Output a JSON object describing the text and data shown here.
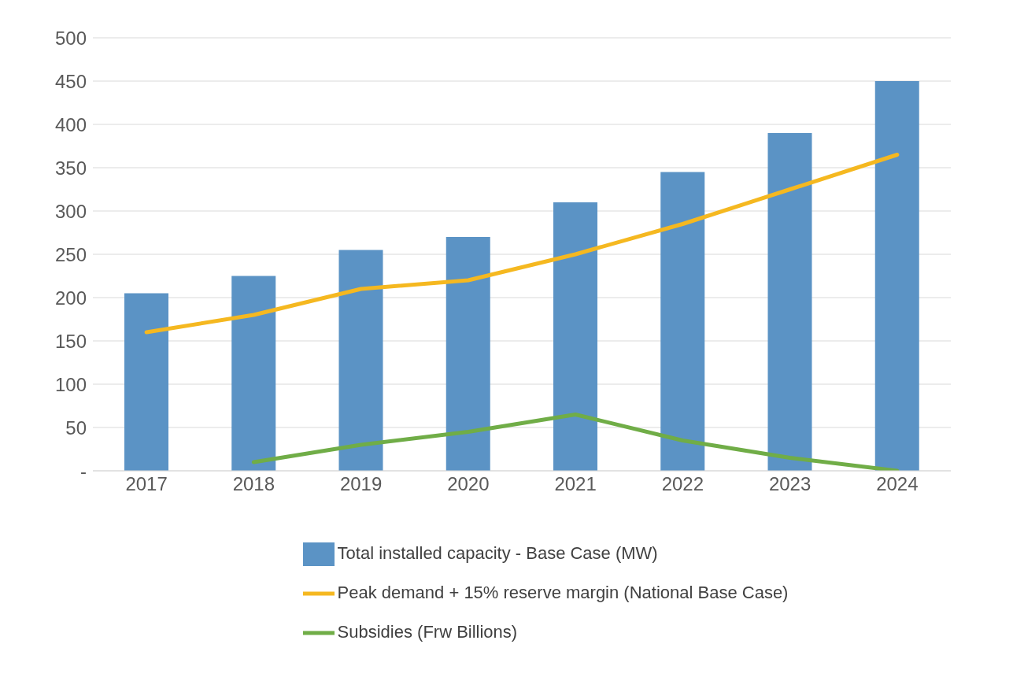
{
  "chart_data": {
    "type": "bar",
    "categories": [
      "2017",
      "2018",
      "2019",
      "2020",
      "2021",
      "2022",
      "2023",
      "2024"
    ],
    "series": [
      {
        "name": "Total installed capacity - Base Case (MW)",
        "color": "#5b93c5",
        "values": [
          205,
          225,
          255,
          270,
          310,
          345,
          390,
          450
        ]
      },
      {
        "name": "Peak demand + 15% reserve margin (National Base Case)",
        "type": "line",
        "color": "#f5b820",
        "values": [
          160,
          180,
          210,
          220,
          250,
          285,
          325,
          365
        ]
      },
      {
        "name": "Subsidies (Frw Billions)",
        "type": "line",
        "color": "#70ad47",
        "values": [
          null,
          10,
          30,
          45,
          65,
          35,
          15,
          0
        ]
      }
    ],
    "ylim": [
      0,
      500
    ],
    "yticks": [
      {
        "value": 0,
        "label": "-"
      },
      50,
      100,
      150,
      200,
      250,
      300,
      350,
      400,
      450,
      500
    ],
    "grid": "y",
    "legend": "bottom",
    "marker": "none",
    "line_style": "solid"
  }
}
